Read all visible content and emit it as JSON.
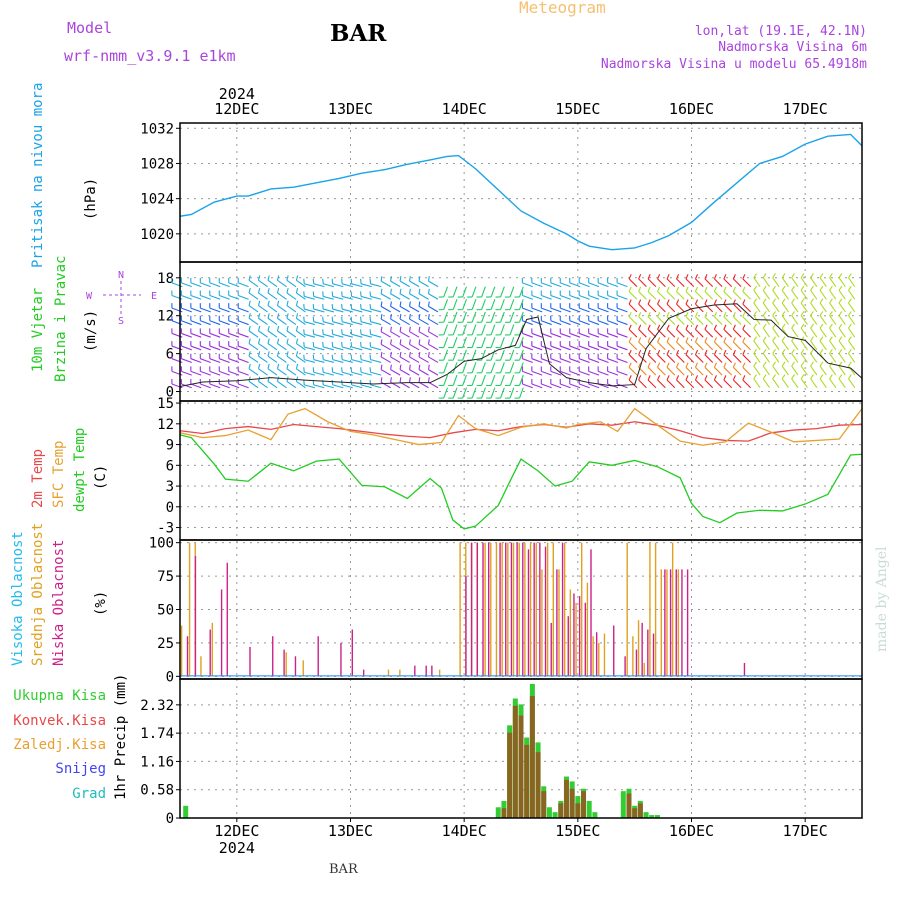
{
  "header": {
    "model_label": "Model",
    "model_name": "wrf-nmm_v3.9.1 e1km",
    "station": "BAR",
    "title": "Meteogram",
    "coords": "lon,lat (19.1E, 42.1N)",
    "elev": "Nadmorska Visina 6m",
    "elev_model": "Nadmorska Visina u modelu 65.4918m"
  },
  "footer": {
    "station": "BAR"
  },
  "watermark": "made by Angel",
  "colors": {
    "pressure": "#1aa3e8",
    "temp2m": "#e84848",
    "sfc": "#e8a030",
    "dew": "#22cc22",
    "high_cloud": "#22bbee",
    "mid_cloud": "#e0a020",
    "low_cloud": "#cc2288",
    "precip_total": "#33cc33",
    "precip_conv": "#886622",
    "snow": "#4444ee",
    "graupel": "#22bbbb",
    "legend_purple": "#aa44dd"
  },
  "chart_data": {
    "type": "line",
    "x_axis": {
      "year": "2024",
      "ticks": [
        "12DEC",
        "13DEC",
        "14DEC",
        "15DEC",
        "16DEC",
        "17DEC"
      ],
      "range_days": [
        11.5,
        17.5
      ],
      "grid": true
    },
    "panels": [
      {
        "id": "pressure",
        "type": "line",
        "ylabel": [
          "Pritisak na nivou mora",
          "(hPa)"
        ],
        "yticks": [
          1020,
          1024,
          1028,
          1032
        ],
        "ylim": [
          1016.8,
          1032.6
        ],
        "series": [
          {
            "x": [
              11.5,
              11.6,
              11.8,
              12.0,
              12.1,
              12.3,
              12.5,
              12.7,
              12.9,
              13.1,
              13.3,
              13.5,
              13.7,
              13.85,
              13.95,
              14.1,
              14.3,
              14.5,
              14.7,
              14.9,
              15.0,
              15.1,
              15.3,
              15.5,
              15.65,
              15.8,
              16.0,
              16.2,
              16.4,
              16.6,
              16.8,
              17.0,
              17.2,
              17.4,
              17.5
            ],
            "y": [
              1022.0,
              1022.2,
              1023.6,
              1024.3,
              1024.3,
              1025.1,
              1025.3,
              1025.8,
              1026.3,
              1026.9,
              1027.3,
              1027.9,
              1028.4,
              1028.8,
              1028.9,
              1027.4,
              1025.0,
              1022.6,
              1021.2,
              1020.0,
              1019.2,
              1018.6,
              1018.2,
              1018.4,
              1019.0,
              1019.8,
              1021.3,
              1023.6,
              1025.8,
              1028.0,
              1028.8,
              1030.2,
              1031.1,
              1031.3,
              1030.0
            ]
          }
        ]
      },
      {
        "id": "wind",
        "type": "barbs",
        "ylabel": [
          "10m Vjetar",
          "Brzina i Pravac",
          "(m/s)"
        ],
        "compass": [
          "N",
          "W",
          "E",
          "S"
        ],
        "yticks": [
          0,
          6,
          12,
          18
        ],
        "ylim": [
          -1.5,
          20.5
        ],
        "barb_colors": [
          "#9933dd",
          "#2266ee",
          "#22aadd",
          "#22ccbb",
          "#22cc66",
          "#aadd22",
          "#eedd22",
          "#ee8822",
          "#ee2222",
          "#ee2288"
        ],
        "series": [
          {
            "name": "speed",
            "x": [
              11.5,
              11.7,
              12.0,
              12.3,
              12.6,
              12.9,
              13.2,
              13.5,
              13.7,
              13.85,
              14.0,
              14.15,
              14.3,
              14.45,
              14.55,
              14.65,
              14.75,
              14.9,
              15.1,
              15.3,
              15.5,
              15.6,
              15.8,
              16.0,
              16.2,
              16.4,
              16.55,
              16.7,
              16.85,
              17.0,
              17.2,
              17.4,
              17.5
            ],
            "y": [
              0.8,
              1.5,
              1.7,
              2.2,
              1.8,
              1.5,
              1.2,
              1.4,
              1.4,
              2.7,
              4.8,
              5.2,
              6.6,
              7.3,
              11.4,
              11.8,
              4.4,
              2.2,
              1.4,
              0.9,
              1.1,
              6.8,
              11.6,
              13.1,
              13.7,
              13.9,
              11.4,
              11.3,
              8.7,
              8.1,
              4.5,
              3.7,
              2.1
            ]
          }
        ],
        "directions": [
          {
            "from": 11.5,
            "to": 12.15,
            "angle": 200,
            "color": "#2266ee"
          },
          {
            "from": 12.15,
            "to": 12.65,
            "angle": 215,
            "color": "#22aadd"
          },
          {
            "from": 12.65,
            "to": 13.3,
            "angle": 195,
            "color": "#22aadd"
          },
          {
            "from": 13.3,
            "to": 13.85,
            "angle": 210,
            "color": "#2266ee"
          },
          {
            "from": 13.85,
            "to": 14.55,
            "angle": 110,
            "color": "#22cc66"
          },
          {
            "from": 14.55,
            "to": 15.5,
            "angle": 200,
            "color": "#2266ee"
          },
          {
            "from": 15.5,
            "to": 16.6,
            "angle": 225,
            "color": "#ee2222"
          },
          {
            "from": 16.6,
            "to": 17.5,
            "angle": 235,
            "color": "#aadd22"
          }
        ]
      },
      {
        "id": "temperature",
        "type": "line",
        "ylabel": [
          "2m Temp",
          "SFC Temp",
          "dewpt Temp",
          "(C)"
        ],
        "yticks": [
          -3,
          0,
          3,
          6,
          9,
          12,
          15
        ],
        "ylim": [
          -4.8,
          15.3
        ],
        "series": [
          {
            "name": "2m Temp",
            "x": [
              11.5,
              11.7,
              11.9,
              12.1,
              12.3,
              12.5,
              12.7,
              12.9,
              13.1,
              13.3,
              13.5,
              13.7,
              13.9,
              14.1,
              14.3,
              14.5,
              14.7,
              14.9,
              15.1,
              15.3,
              15.5,
              15.7,
              15.9,
              16.1,
              16.3,
              16.5,
              16.7,
              16.9,
              17.1,
              17.3,
              17.5
            ],
            "y": [
              11.0,
              10.6,
              11.3,
              11.6,
              11.2,
              11.9,
              11.6,
              11.3,
              10.9,
              10.5,
              10.2,
              10.0,
              10.7,
              11.2,
              11.0,
              11.6,
              11.9,
              11.5,
              12.0,
              11.8,
              12.3,
              11.8,
              11.0,
              10.0,
              9.6,
              9.5,
              10.7,
              11.1,
              11.3,
              11.8,
              11.9
            ]
          },
          {
            "name": "SFC Temp",
            "x": [
              11.5,
              11.7,
              11.9,
              12.1,
              12.3,
              12.45,
              12.6,
              12.8,
              13.0,
              13.2,
              13.4,
              13.6,
              13.8,
              13.95,
              14.1,
              14.3,
              14.5,
              14.7,
              14.9,
              15.0,
              15.2,
              15.35,
              15.5,
              15.7,
              15.9,
              16.1,
              16.3,
              16.5,
              16.7,
              16.9,
              17.1,
              17.3,
              17.4,
              17.5
            ],
            "y": [
              10.7,
              10.0,
              10.3,
              11.1,
              9.7,
              13.4,
              14.2,
              12.3,
              10.9,
              10.4,
              9.7,
              9.0,
              9.3,
              13.2,
              11.3,
              10.3,
              11.5,
              12.0,
              11.4,
              11.9,
              12.3,
              10.9,
              14.2,
              11.8,
              9.5,
              8.9,
              9.4,
              12.1,
              10.8,
              9.4,
              9.6,
              9.8,
              12.0,
              14.2
            ]
          },
          {
            "name": "dewpt Temp",
            "x": [
              11.5,
              11.6,
              11.8,
              11.9,
              12.1,
              12.3,
              12.5,
              12.7,
              12.9,
              13.1,
              13.3,
              13.5,
              13.7,
              13.8,
              13.9,
              14.0,
              14.1,
              14.3,
              14.4,
              14.5,
              14.65,
              14.8,
              14.95,
              15.1,
              15.3,
              15.5,
              15.7,
              15.9,
              16.0,
              16.1,
              16.25,
              16.4,
              16.6,
              16.8,
              17.0,
              17.2,
              17.4,
              17.5
            ],
            "y": [
              10.4,
              10.0,
              6.2,
              4.0,
              3.7,
              6.3,
              5.2,
              6.6,
              6.9,
              3.1,
              2.9,
              1.2,
              4.1,
              2.7,
              -1.9,
              -3.2,
              -2.8,
              0.2,
              3.6,
              6.9,
              5.2,
              3.0,
              3.7,
              6.5,
              6.0,
              6.7,
              5.8,
              4.2,
              0.5,
              -1.4,
              -2.3,
              -0.9,
              -0.5,
              -0.6,
              0.4,
              1.8,
              7.5,
              7.6
            ]
          }
        ]
      },
      {
        "id": "cloud",
        "type": "bar",
        "ylabel": [
          "Visoka Oblacnost",
          "Srednja Oblacnost",
          "Niska Oblacnost",
          "(%)"
        ],
        "yticks": [
          0,
          25,
          50,
          75,
          100
        ],
        "ylim": [
          -2,
          102
        ],
        "series": [
          {
            "name": "Visoka Oblacnost",
            "x": [],
            "values": []
          },
          {
            "name": "Srednja Oblacnost",
            "x": [
              11.53,
              11.6,
              11.65,
              11.7,
              11.8,
              12.45,
              12.6,
              13.35,
              13.45,
              13.8,
              13.98,
              14.03,
              14.08,
              14.13,
              14.2,
              14.25,
              14.3,
              14.35,
              14.4,
              14.45,
              14.5,
              14.55,
              14.6,
              14.65,
              14.7,
              14.75,
              14.8,
              14.85,
              14.9,
              14.95,
              15.0,
              15.05,
              15.1,
              15.15,
              15.2,
              15.25,
              15.45,
              15.5,
              15.55,
              15.6,
              15.65,
              15.7,
              15.75,
              15.8,
              15.85,
              15.9
            ],
            "values": [
              38,
              100,
              100,
              15,
              40,
              18,
              12,
              5,
              5,
              5,
              100,
              100,
              100,
              100,
              100,
              100,
              100,
              100,
              100,
              100,
              100,
              100,
              100,
              100,
              80,
              100,
              100,
              80,
              100,
              65,
              55,
              100,
              70,
              30,
              25,
              32,
              100,
              30,
              42,
              10,
              100,
              100,
              80,
              80,
              100,
              80
            ]
          },
          {
            "name": "Niska Oblacnost",
            "x": [
              11.55,
              11.62,
              11.75,
              11.85,
              11.9,
              12.1,
              12.3,
              12.4,
              12.5,
              12.7,
              12.9,
              13.0,
              13.1,
              13.55,
              13.65,
              13.7,
              14.0,
              14.05,
              14.1,
              14.15,
              14.2,
              14.3,
              14.35,
              14.4,
              14.45,
              14.5,
              14.55,
              14.6,
              14.65,
              14.7,
              14.75,
              14.8,
              14.85,
              14.9,
              14.95,
              15.0,
              15.05,
              15.1,
              15.15,
              15.3,
              15.4,
              15.5,
              15.55,
              15.6,
              15.65,
              15.75,
              15.8,
              15.85,
              15.9,
              15.95,
              16.45
            ],
            "values": [
              30,
              90,
              35,
              65,
              85,
              22,
              30,
              20,
              15,
              30,
              25,
              35,
              5,
              8,
              8,
              8,
              75,
              100,
              100,
              100,
              100,
              100,
              100,
              100,
              100,
              100,
              95,
              100,
              100,
              97,
              40,
              80,
              100,
              45,
              62,
              60,
              55,
              95,
              33,
              38,
              15,
              20,
              40,
              35,
              32,
              80,
              80,
              80,
              80,
              80,
              10
            ]
          }
        ]
      },
      {
        "id": "precip",
        "type": "bar",
        "ylabel": [
          "1hr Precip (mm)"
        ],
        "yticks": [
          0,
          0.58,
          1.16,
          1.74,
          2.32
        ],
        "ylim": [
          0,
          2.85
        ],
        "series": [
          {
            "name": "Ukupna Kisa",
            "x": [
              11.55,
              14.3,
              14.35,
              14.4,
              14.45,
              14.5,
              14.55,
              14.6,
              14.65,
              14.7,
              14.75,
              14.8,
              14.85,
              14.9,
              14.95,
              15.0,
              15.05,
              15.1,
              15.15,
              15.4,
              15.45,
              15.5,
              15.55,
              15.6,
              15.65,
              15.7
            ],
            "values": [
              0.25,
              0.22,
              0.35,
              1.9,
              2.45,
              2.33,
              1.65,
              2.75,
              1.55,
              0.65,
              0.22,
              0.12,
              0.35,
              0.85,
              0.75,
              0.45,
              0.6,
              0.35,
              0.12,
              0.55,
              0.6,
              0.25,
              0.35,
              0.12,
              0.06,
              0.06
            ]
          },
          {
            "name": "Konvek.Kisa",
            "x": [
              14.35,
              14.4,
              14.45,
              14.5,
              14.55,
              14.6,
              14.65,
              14.7,
              14.85,
              14.9,
              14.95,
              15.0,
              15.05,
              15.45,
              15.5,
              15.55
            ],
            "values": [
              0.2,
              1.75,
              2.3,
              2.1,
              1.5,
              2.5,
              1.35,
              0.55,
              0.3,
              0.78,
              0.6,
              0.3,
              0.55,
              0.5,
              0.2,
              0.3
            ]
          },
          {
            "name": "Zaledj.Kisa",
            "x": [],
            "values": []
          },
          {
            "name": "Snijeg",
            "x": [],
            "values": []
          },
          {
            "name": "Grad",
            "x": [],
            "values": []
          }
        ]
      }
    ]
  }
}
